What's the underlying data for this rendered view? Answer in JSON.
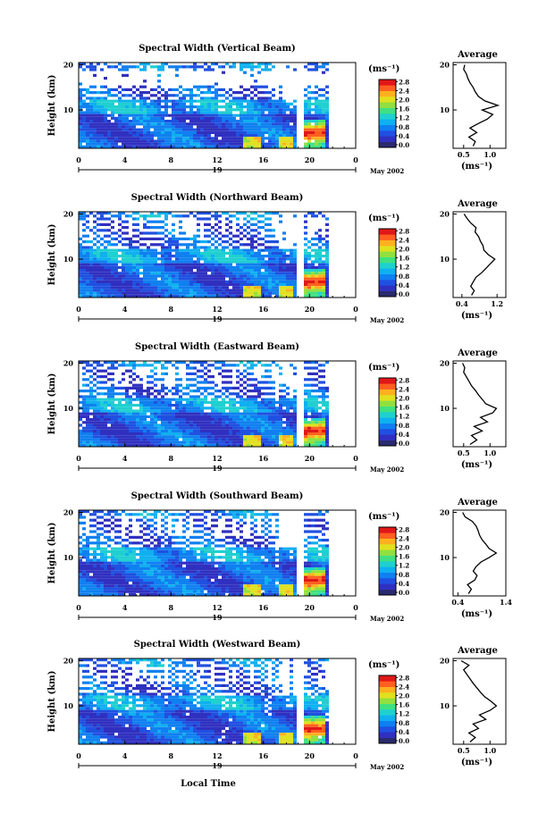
{
  "figure": {
    "height_label": "Height (km)",
    "xlabel": "Local Time",
    "date_label": "May 2002",
    "day_label": "19",
    "unit_label": "(ms⁻¹)",
    "avg_title": "Average"
  },
  "colorbar": {
    "ticks": [
      "0.0",
      "0.4",
      "0.8",
      "1.2",
      "1.6",
      "2.0",
      "2.4",
      "2.8"
    ],
    "colors": [
      "#2a2a6e",
      "#3030c0",
      "#2050e0",
      "#1080f0",
      "#10b0f0",
      "#20d0d0",
      "#40e080",
      "#90e040",
      "#e0e020",
      "#ffb020",
      "#ff6020",
      "#e01818"
    ]
  },
  "chart_data": [
    {
      "type": "heatmap",
      "title": "Spectral Width (Vertical Beam)",
      "xlabel": "Local Time",
      "ylabel": "Height (km)",
      "x_ticks": [
        "0",
        "4",
        "8",
        "12",
        "16",
        "20",
        "0"
      ],
      "y_ticks": [
        "10",
        "20"
      ],
      "xlim": [
        0,
        24
      ],
      "ylim": [
        1.5,
        20.5
      ],
      "zlim": [
        0,
        3.0
      ],
      "average_profile": {
        "title": "Average",
        "xlabel": "(ms⁻¹)",
        "x_ticks": [
          "0.5",
          "1.0"
        ],
        "xlim": [
          0.3,
          1.3
        ],
        "height_km": [
          2,
          3,
          4,
          5,
          6,
          7,
          8,
          9,
          10,
          11,
          12,
          13,
          14,
          15,
          16,
          17,
          18,
          19,
          20
        ],
        "value": [
          0.68,
          0.72,
          0.6,
          0.75,
          0.62,
          0.78,
          0.95,
          1.05,
          0.85,
          1.15,
          0.9,
          0.78,
          0.72,
          0.68,
          0.62,
          0.58,
          0.55,
          0.5,
          0.52
        ]
      }
    },
    {
      "type": "heatmap",
      "title": "Spectral Width (Northward Beam)",
      "xlabel": "Local Time",
      "ylabel": "Height (km)",
      "x_ticks": [
        "0",
        "4",
        "8",
        "12",
        "16",
        "20",
        "0"
      ],
      "y_ticks": [
        "10",
        "20"
      ],
      "xlim": [
        0,
        24
      ],
      "ylim": [
        1.5,
        20.5
      ],
      "zlim": [
        0,
        3.0
      ],
      "average_profile": {
        "title": "Average",
        "xlabel": "(ms⁻¹)",
        "x_ticks": [
          "0.4",
          "1.2"
        ],
        "xlim": [
          0.2,
          1.4
        ],
        "height_km": [
          2,
          3,
          4,
          5,
          6,
          7,
          8,
          9,
          10,
          11,
          12,
          13,
          14,
          15,
          16,
          17,
          18,
          19,
          20
        ],
        "value": [
          0.62,
          0.68,
          0.6,
          0.66,
          0.72,
          0.85,
          0.95,
          1.05,
          1.15,
          1.0,
          0.9,
          0.88,
          0.82,
          0.78,
          0.7,
          0.72,
          0.6,
          0.52,
          0.45
        ]
      }
    },
    {
      "type": "heatmap",
      "title": "Spectral Width (Eastward Beam)",
      "xlabel": "Local Time",
      "ylabel": "Height (km)",
      "x_ticks": [
        "0",
        "4",
        "8",
        "12",
        "16",
        "20",
        "0"
      ],
      "y_ticks": [
        "10",
        "20"
      ],
      "xlim": [
        0,
        24
      ],
      "ylim": [
        1.5,
        20.5
      ],
      "zlim": [
        0,
        3.0
      ],
      "average_profile": {
        "title": "Average",
        "xlabel": "(ms⁻¹)",
        "x_ticks": [
          "0.5",
          "1.0"
        ],
        "xlim": [
          0.3,
          1.3
        ],
        "height_km": [
          2,
          3,
          4,
          5,
          6,
          7,
          8,
          9,
          10,
          11,
          12,
          13,
          14,
          15,
          16,
          17,
          18,
          19,
          20
        ],
        "value": [
          0.62,
          0.75,
          0.65,
          0.85,
          0.7,
          0.95,
          0.82,
          1.05,
          1.12,
          0.92,
          0.85,
          0.78,
          0.72,
          0.65,
          0.6,
          0.55,
          0.5,
          0.52,
          0.48
        ]
      }
    },
    {
      "type": "heatmap",
      "title": "Spectral Width (Southward Beam)",
      "xlabel": "Local Time",
      "ylabel": "Height (km)",
      "x_ticks": [
        "0",
        "4",
        "8",
        "12",
        "16",
        "20",
        "0"
      ],
      "y_ticks": [
        "10",
        "20"
      ],
      "xlim": [
        0,
        24
      ],
      "ylim": [
        1.5,
        20.5
      ],
      "zlim": [
        0,
        3.0
      ],
      "average_profile": {
        "title": "Average",
        "xlabel": "(ms⁻¹)",
        "x_ticks": [
          "0.4",
          "1.4"
        ],
        "xlim": [
          0.3,
          1.4
        ],
        "height_km": [
          2,
          3,
          4,
          5,
          6,
          7,
          8,
          9,
          10,
          11,
          12,
          13,
          14,
          15,
          16,
          17,
          18,
          19,
          20
        ],
        "value": [
          0.62,
          0.68,
          0.6,
          0.75,
          0.8,
          0.72,
          0.78,
          0.88,
          1.05,
          1.2,
          1.05,
          0.98,
          0.9,
          0.85,
          0.82,
          0.78,
          0.7,
          0.55,
          0.5
        ]
      }
    },
    {
      "type": "heatmap",
      "title": "Spectral Width (Westward Beam)",
      "xlabel": "Local Time",
      "ylabel": "Height (km)",
      "x_ticks": [
        "0",
        "4",
        "8",
        "12",
        "16",
        "20",
        "0"
      ],
      "y_ticks": [
        "10",
        "20"
      ],
      "xlim": [
        0,
        24
      ],
      "ylim": [
        1.5,
        20.5
      ],
      "zlim": [
        0,
        3.0
      ],
      "average_profile": {
        "title": "Average",
        "xlabel": "(ms⁻¹)",
        "x_ticks": [
          "0.5",
          "1.0"
        ],
        "xlim": [
          0.3,
          1.3
        ],
        "height_km": [
          2,
          3,
          4,
          5,
          6,
          7,
          8,
          9,
          10,
          11,
          12,
          13,
          14,
          15,
          16,
          17,
          18,
          19,
          20
        ],
        "value": [
          0.62,
          0.72,
          0.6,
          0.78,
          0.68,
          0.92,
          0.8,
          1.0,
          1.12,
          1.02,
          0.9,
          0.82,
          0.75,
          0.68,
          0.62,
          0.56,
          0.5,
          0.6,
          0.45
        ]
      }
    }
  ]
}
